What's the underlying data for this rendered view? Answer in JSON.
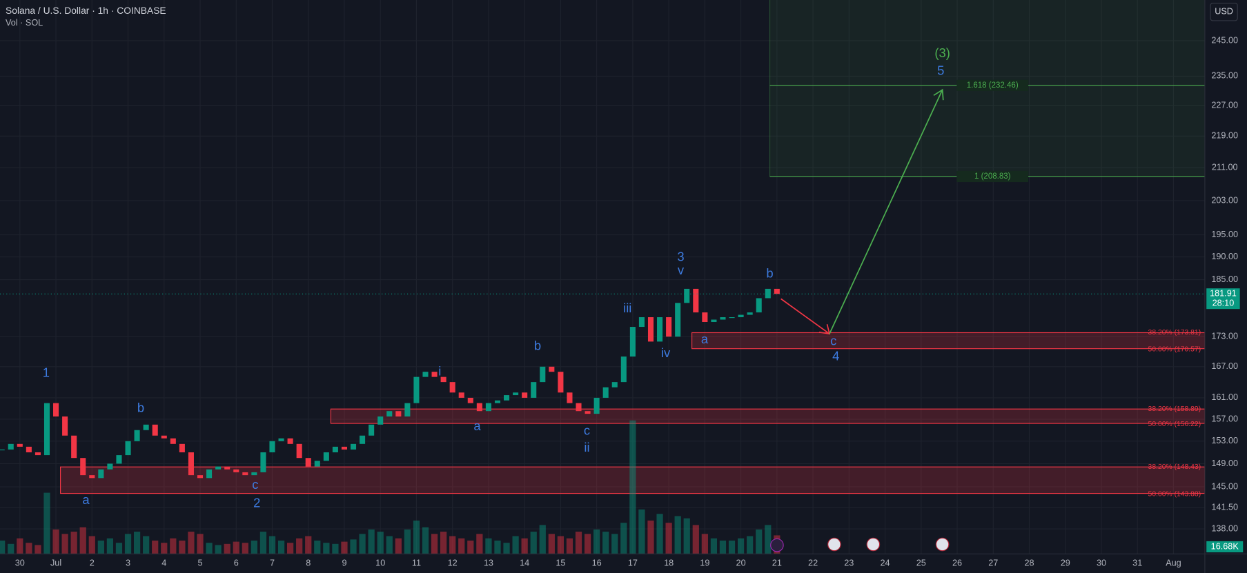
{
  "header": {
    "symbol": "Solana / U.S. Dollar · 1h · COINBASE",
    "volume_label": "Vol · SOL",
    "currency": "USD"
  },
  "chart_data": {
    "type": "candlestick",
    "closes": [
      151.5,
      152.5,
      152,
      151,
      150.5,
      160,
      157.5,
      154,
      150,
      147,
      146.5,
      148,
      149,
      150.5,
      153,
      155,
      156,
      154,
      153.5,
      152.5,
      151,
      147,
      146.5,
      148,
      148.5,
      148,
      147.5,
      147,
      147.5,
      151,
      153,
      153.5,
      152.5,
      150,
      148.5,
      149.5,
      151,
      152,
      151.5,
      152.5,
      154,
      156,
      157.5,
      158.5,
      157.5,
      160,
      165,
      166,
      165,
      164,
      162,
      161,
      160,
      158.5,
      160,
      160.5,
      161.5,
      162,
      161,
      164,
      167,
      166,
      162,
      160,
      158.5,
      158,
      161,
      163,
      164,
      169,
      175,
      177,
      172,
      177,
      173,
      180,
      183,
      178,
      176,
      176.5,
      177,
      177,
      177.5,
      178,
      181,
      183,
      181.91
    ],
    "volume": [
      12,
      9,
      14,
      10,
      8,
      55,
      22,
      18,
      20,
      24,
      16,
      12,
      14,
      10,
      18,
      20,
      16,
      12,
      10,
      14,
      12,
      20,
      18,
      10,
      8,
      9,
      11,
      10,
      12,
      20,
      16,
      12,
      10,
      14,
      16,
      12,
      10,
      9,
      11,
      13,
      18,
      22,
      20,
      16,
      14,
      22,
      30,
      24,
      18,
      20,
      16,
      14,
      12,
      18,
      14,
      12,
      10,
      16,
      14,
      20,
      26,
      18,
      16,
      14,
      20,
      18,
      22,
      20,
      18,
      28,
      120,
      40,
      30,
      36,
      28,
      34,
      32,
      26,
      18,
      14,
      12,
      12,
      14,
      16,
      22,
      26,
      16.68
    ],
    "volume_last_label": "16.68K",
    "up_color": "#089981",
    "down_color": "#f23645",
    "log_scale": true,
    "grid": true,
    "ylim": [
      134,
      257
    ],
    "yticks": [
      {
        "value": 245,
        "label": "245.00"
      },
      {
        "value": 235,
        "label": "235.00"
      },
      {
        "value": 227,
        "label": "227.00"
      },
      {
        "value": 219,
        "label": "219.00"
      },
      {
        "value": 211,
        "label": "211.00"
      },
      {
        "value": 203,
        "label": "203.00"
      },
      {
        "value": 195,
        "label": "195.00"
      },
      {
        "value": 190,
        "label": "190.00"
      },
      {
        "value": 185,
        "label": "185.00"
      },
      {
        "value": 173,
        "label": "173.00"
      },
      {
        "value": 167,
        "label": "167.00"
      },
      {
        "value": 161,
        "label": "161.00"
      },
      {
        "value": 157,
        "label": "157.00"
      },
      {
        "value": 153,
        "label": "153.00"
      },
      {
        "value": 149,
        "label": "149.00"
      },
      {
        "value": 145,
        "label": "145.00"
      },
      {
        "value": 141.5,
        "label": "141.50"
      },
      {
        "value": 138,
        "label": "138.00"
      }
    ],
    "x_labels": [
      "30",
      "Jul",
      "2",
      "3",
      "4",
      "5",
      "6",
      "7",
      "8",
      "9",
      "10",
      "11",
      "12",
      "13",
      "14",
      "15",
      "16",
      "17",
      "18",
      "19",
      "20",
      "21",
      "22",
      "23",
      "24",
      "25",
      "26",
      "27",
      "28",
      "29",
      "30",
      "31",
      "Aug"
    ],
    "last_price_label": "181.91",
    "countdown": "28:10",
    "zones": [
      {
        "top": {
          "value": 173.81,
          "label": "38.20% (173.81)"
        },
        "bottom": {
          "value": 170.57,
          "label": "50.00% (170.57)"
        }
      },
      {
        "top": {
          "value": 158.89,
          "label": "38.20% (158.89)"
        },
        "bottom": {
          "value": 156.22,
          "label": "50.00% (156.22)"
        }
      },
      {
        "top": {
          "value": 148.43,
          "label": "38.20% (148.43)"
        },
        "bottom": {
          "value": 143.88,
          "label": "50.00% (143.88)"
        }
      }
    ],
    "targets": [
      {
        "value": 232.46,
        "label": "1.618 (232.46)"
      },
      {
        "value": 208.83,
        "label": "1 (208.83)"
      }
    ],
    "wave_labels": [
      "1",
      "a",
      "b",
      "c",
      "2",
      "i",
      "a",
      "b",
      "c",
      "ii",
      "iii",
      "iv",
      "3",
      "v",
      "a",
      "b",
      "c",
      "4",
      "(3)",
      "5"
    ]
  }
}
